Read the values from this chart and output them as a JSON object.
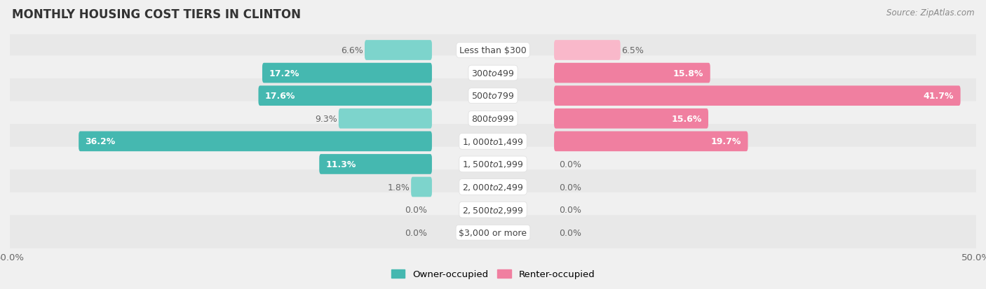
{
  "title": "MONTHLY HOUSING COST TIERS IN CLINTON",
  "source": "Source: ZipAtlas.com",
  "categories": [
    "Less than $300",
    "$300 to $499",
    "$500 to $799",
    "$800 to $999",
    "$1,000 to $1,499",
    "$1,500 to $1,999",
    "$2,000 to $2,499",
    "$2,500 to $2,999",
    "$3,000 or more"
  ],
  "owner_values": [
    6.6,
    17.2,
    17.6,
    9.3,
    36.2,
    11.3,
    1.8,
    0.0,
    0.0
  ],
  "renter_values": [
    6.5,
    15.8,
    41.7,
    15.6,
    19.7,
    0.0,
    0.0,
    0.0,
    0.0
  ],
  "owner_color": "#45b8b0",
  "renter_color": "#f07fa0",
  "owner_color_light": "#7dd4cc",
  "renter_color_light": "#f9b8ca",
  "background_color": "#f0f0f0",
  "row_bg_even": "#e8e8e8",
  "row_bg_odd": "#f0f0f0",
  "xlim": 50.0,
  "bar_height": 0.52,
  "label_fontsize": 9.0,
  "cat_fontsize": 9.0,
  "title_fontsize": 12,
  "source_fontsize": 8.5,
  "legend_fontsize": 9.5
}
